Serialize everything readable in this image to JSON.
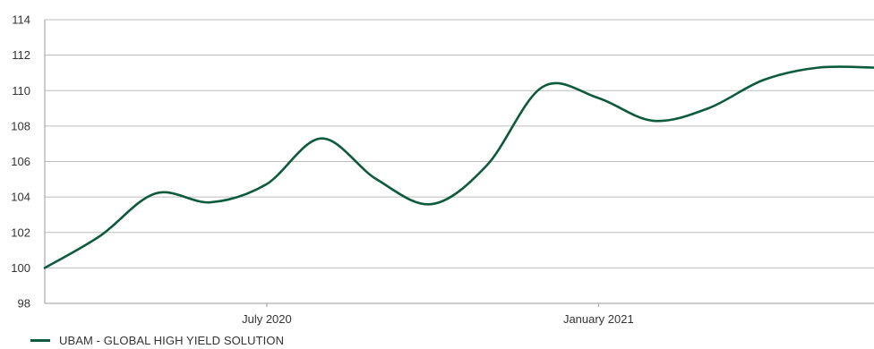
{
  "chart_data": {
    "type": "line",
    "title": "",
    "xlabel": "",
    "ylabel": "",
    "ylim": [
      98,
      114
    ],
    "y_ticks": [
      "98",
      "100",
      "102",
      "104",
      "106",
      "108",
      "110",
      "112",
      "114"
    ],
    "x_tick_labels": [
      {
        "label": "July 2020",
        "x": "2020-07"
      },
      {
        "label": "January 2021",
        "x": "2021-01"
      }
    ],
    "grid": true,
    "legend_position": "bottom-left",
    "series": [
      {
        "name": "UBAM - GLOBAL HIGH YIELD SOLUTION",
        "color": "#0d5a3c",
        "points": [
          {
            "x": "2020-03",
            "y": 100.0
          },
          {
            "x": "2020-04",
            "y": 101.8
          },
          {
            "x": "2020-05",
            "y": 104.2
          },
          {
            "x": "2020-06",
            "y": 103.7
          },
          {
            "x": "2020-07",
            "y": 104.7
          },
          {
            "x": "2020-08",
            "y": 107.3
          },
          {
            "x": "2020-09",
            "y": 105.0
          },
          {
            "x": "2020-10",
            "y": 103.6
          },
          {
            "x": "2020-11",
            "y": 105.8
          },
          {
            "x": "2020-12",
            "y": 110.2
          },
          {
            "x": "2021-01",
            "y": 109.6
          },
          {
            "x": "2021-02",
            "y": 108.3
          },
          {
            "x": "2021-03",
            "y": 109.0
          },
          {
            "x": "2021-04",
            "y": 110.6
          },
          {
            "x": "2021-05",
            "y": 111.3
          },
          {
            "x": "2021-06",
            "y": 111.3
          }
        ]
      }
    ]
  },
  "legend": {
    "label": "UBAM - GLOBAL HIGH YIELD SOLUTION"
  }
}
